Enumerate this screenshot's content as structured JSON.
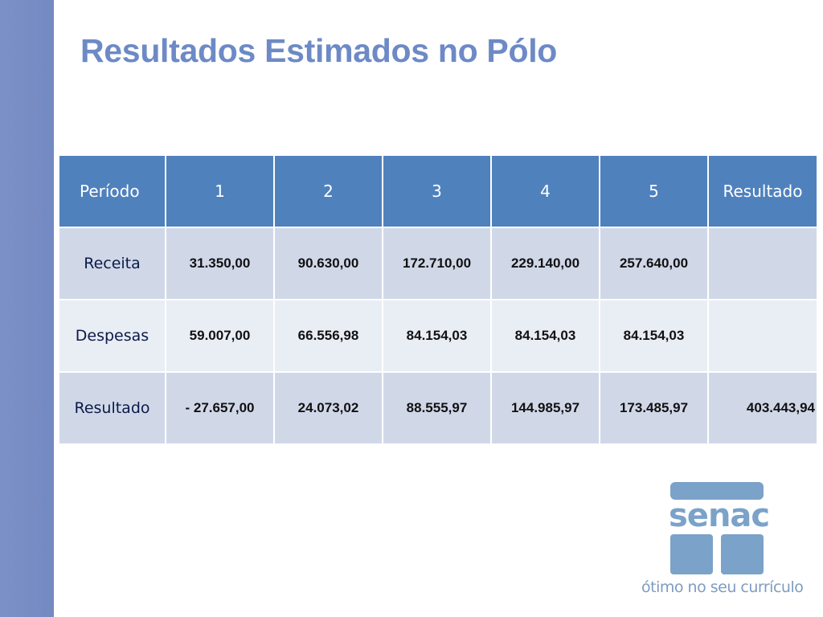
{
  "slide": {
    "title": "Resultados Estimados no Pólo"
  },
  "table": {
    "header": [
      "Período",
      "1",
      "2",
      "3",
      "4",
      "5",
      "Resultado"
    ],
    "rows": [
      {
        "label": "Receita",
        "values": [
          "31.350,00",
          "90.630,00",
          "172.710,00",
          "229.140,00",
          "257.640,00",
          ""
        ]
      },
      {
        "label": "Despesas",
        "values": [
          "59.007,00",
          "66.556,98",
          "84.154,03",
          "84.154,03",
          "84.154,03",
          ""
        ]
      },
      {
        "label": "Resultado",
        "values": [
          "- 27.657,00",
          "24.073,02",
          "88.555,97",
          "144.985,97",
          "173.485,97",
          "403.443,94"
        ]
      }
    ]
  },
  "logo": {
    "wordmark": "senac",
    "tagline": "ótimo no seu currículo"
  },
  "colors": {
    "header_bg": "#4f81bd",
    "row_odd": "#d0d8e8",
    "row_even": "#e9edf4",
    "title": "#6d8ac6",
    "negative": "#e8131b",
    "brand": "#7ba2c8"
  }
}
